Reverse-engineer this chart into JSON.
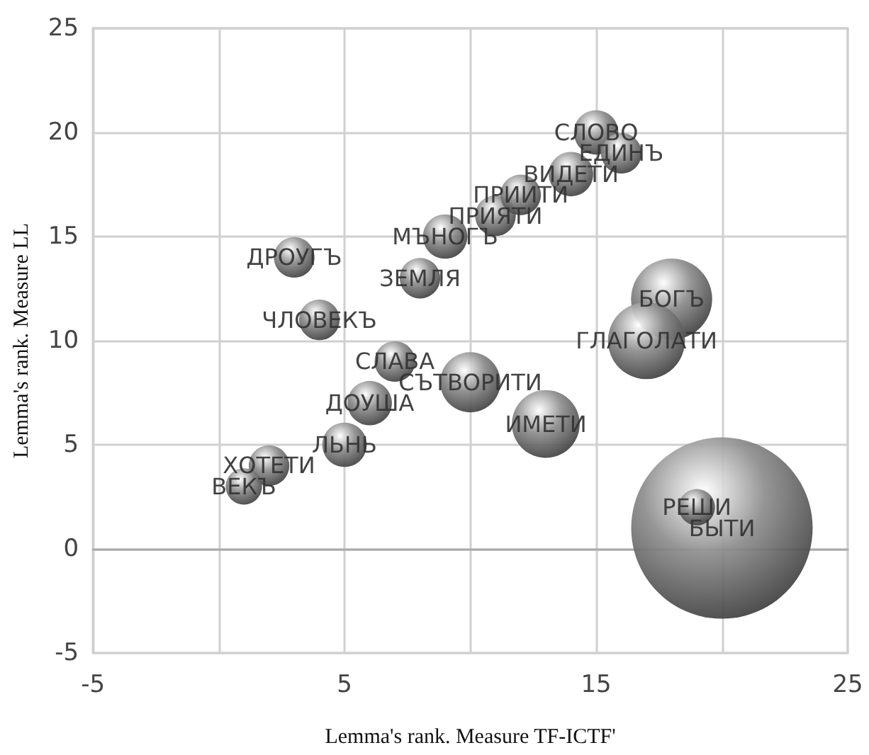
{
  "chart_data": {
    "type": "bubble",
    "xlabel": "Lemma's rank. Measure TF-ICTF'",
    "ylabel": "Lemma's rank. Measure LL",
    "xlim": [
      -5,
      25
    ],
    "xticks": [
      -5,
      {
        "value": 0,
        "label": null
      },
      5,
      {
        "value": 10,
        "label": null
      },
      15,
      {
        "value": 20,
        "label": null
      },
      25
    ],
    "ylim": [
      -5,
      25
    ],
    "yticks": [
      -5,
      0,
      5,
      10,
      15,
      20,
      25
    ],
    "grid": true,
    "series": [
      {
        "color": "#8c8c8c",
        "x": [
          1,
          2,
          3,
          4,
          5,
          6,
          7,
          8,
          9,
          10,
          11,
          12,
          13,
          14,
          15,
          16,
          17,
          18,
          19,
          20
        ],
        "values": [
          3,
          4,
          14,
          11,
          5,
          7,
          9,
          13,
          15,
          8,
          16,
          17,
          6,
          18,
          20,
          19,
          10,
          12,
          2,
          1
        ],
        "sizes": [
          0.04,
          0.05,
          0.05,
          0.05,
          0.06,
          0.06,
          0.05,
          0.05,
          0.06,
          0.11,
          0.05,
          0.05,
          0.14,
          0.06,
          0.06,
          0.05,
          0.18,
          0.2,
          0.04,
          1
        ],
        "value_labels": [
          "ВЕКЪ",
          "ХОТЕТИ",
          "ДРОУГЪ",
          "ЧЛОВЕКЪ",
          "ЛЬНЬ",
          "ДОУША",
          "СЛАВА",
          "ЗЕМЛЯ",
          "МЪНОГЪ",
          "СЪТВОРИТИ",
          "ПРИЯТИ",
          "ПРИИТИ",
          "ИМЕТИ",
          "ВИДЕТИ",
          "СЛОВО",
          "ЕДИНЪ",
          "ГЛАГОЛАТИ",
          "БОГЪ",
          "РЕШИ",
          "БЫТИ"
        ]
      }
    ]
  }
}
